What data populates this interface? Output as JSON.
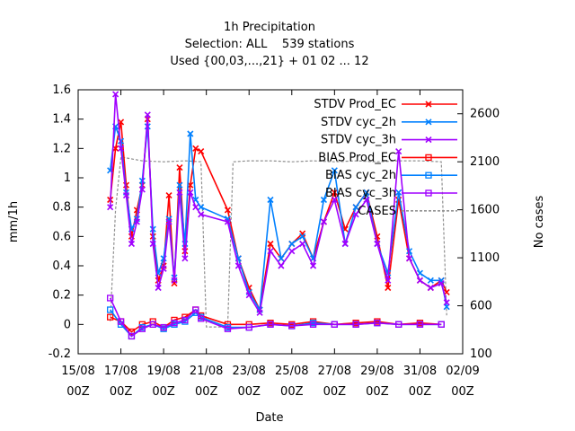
{
  "chart_data": {
    "type": "line",
    "title": "1h Precipitation",
    "subtitle_line1": "Selection: ALL    539 stations",
    "subtitle_line2": "Used {00,03,...,21} + 01 02 ... 12",
    "xlabel": "Date",
    "ylabel": "mm/1h",
    "y2label": "No cases",
    "xlim": [
      "2008-08-15T00",
      "2008-09-02T00"
    ],
    "ylim": [
      -0.2,
      1.6
    ],
    "y2lim": [
      100,
      2850
    ],
    "x_ticks": [
      {
        "line1": "15/08",
        "line2": "00Z"
      },
      {
        "line1": "17/08",
        "line2": "00Z"
      },
      {
        "line1": "19/08",
        "line2": "00Z"
      },
      {
        "line1": "21/08",
        "line2": "00Z"
      },
      {
        "line1": "23/08",
        "line2": "00Z"
      },
      {
        "line1": "25/08",
        "line2": "00Z"
      },
      {
        "line1": "27/08",
        "line2": "00Z"
      },
      {
        "line1": "29/08",
        "line2": "00Z"
      },
      {
        "line1": "31/08",
        "line2": "00Z"
      },
      {
        "line1": "02/09",
        "line2": "00Z"
      }
    ],
    "y_ticks": [
      "-0.2",
      "0",
      "0.2",
      "0.4",
      "0.6",
      "0.8",
      "1",
      "1.2",
      "1.4",
      "1.6"
    ],
    "y2_ticks": [
      "100",
      "600",
      "1100",
      "1600",
      "2100",
      "2600"
    ],
    "legend_position": "top-right",
    "grid": false,
    "series": [
      {
        "name": "STDV Prod_EC",
        "color": "#ff0000",
        "marker": "x",
        "points": [
          [
            "2008-08-16T12",
            0.85
          ],
          [
            "2008-08-16T18",
            1.2
          ],
          [
            "2008-08-17T00",
            1.38
          ],
          [
            "2008-08-17T06",
            0.95
          ],
          [
            "2008-08-17T12",
            0.6
          ],
          [
            "2008-08-17T18",
            0.78
          ],
          [
            "2008-08-18T00",
            0.95
          ],
          [
            "2008-08-18T06",
            1.4
          ],
          [
            "2008-08-18T12",
            0.6
          ],
          [
            "2008-08-18T18",
            0.3
          ],
          [
            "2008-08-19T00",
            0.4
          ],
          [
            "2008-08-19T06",
            0.88
          ],
          [
            "2008-08-19T12",
            0.28
          ],
          [
            "2008-08-19T18",
            1.07
          ],
          [
            "2008-08-20T00",
            0.5
          ],
          [
            "2008-08-20T06",
            0.95
          ],
          [
            "2008-08-20T12",
            1.2
          ],
          [
            "2008-08-20T18",
            1.18
          ],
          [
            "2008-08-22T00",
            0.78
          ],
          [
            "2008-08-22T12",
            0.45
          ],
          [
            "2008-08-23T00",
            0.25
          ],
          [
            "2008-08-23T12",
            0.1
          ],
          [
            "2008-08-24T00",
            0.55
          ],
          [
            "2008-08-24T12",
            0.45
          ],
          [
            "2008-08-25T00",
            0.55
          ],
          [
            "2008-08-25T12",
            0.62
          ],
          [
            "2008-08-26T00",
            0.45
          ],
          [
            "2008-08-26T12",
            0.7
          ],
          [
            "2008-08-27T00",
            0.9
          ],
          [
            "2008-08-27T12",
            0.65
          ],
          [
            "2008-08-28T00",
            0.8
          ],
          [
            "2008-08-28T12",
            0.9
          ],
          [
            "2008-08-29T00",
            0.6
          ],
          [
            "2008-08-29T12",
            0.25
          ],
          [
            "2008-08-30T00",
            0.85
          ],
          [
            "2008-08-30T12",
            0.45
          ],
          [
            "2008-08-31T00",
            0.3
          ],
          [
            "2008-08-31T12",
            0.25
          ],
          [
            "2008-09-01T00",
            0.3
          ],
          [
            "2008-09-01T06",
            0.22
          ]
        ]
      },
      {
        "name": "STDV cyc_2h",
        "color": "#0080ff",
        "marker": "x",
        "points": [
          [
            "2008-08-16T12",
            1.05
          ],
          [
            "2008-08-16T18",
            1.35
          ],
          [
            "2008-08-17T00",
            1.25
          ],
          [
            "2008-08-17T06",
            0.9
          ],
          [
            "2008-08-17T12",
            0.65
          ],
          [
            "2008-08-17T18",
            0.72
          ],
          [
            "2008-08-18T00",
            0.98
          ],
          [
            "2008-08-18T06",
            1.35
          ],
          [
            "2008-08-18T12",
            0.65
          ],
          [
            "2008-08-18T18",
            0.35
          ],
          [
            "2008-08-19T00",
            0.45
          ],
          [
            "2008-08-19T06",
            0.72
          ],
          [
            "2008-08-19T12",
            0.32
          ],
          [
            "2008-08-19T18",
            0.95
          ],
          [
            "2008-08-20T00",
            0.55
          ],
          [
            "2008-08-20T06",
            1.3
          ],
          [
            "2008-08-20T12",
            0.85
          ],
          [
            "2008-08-20T18",
            0.8
          ],
          [
            "2008-08-22T00",
            0.72
          ],
          [
            "2008-08-22T12",
            0.45
          ],
          [
            "2008-08-23T00",
            0.22
          ],
          [
            "2008-08-23T12",
            0.1
          ],
          [
            "2008-08-24T00",
            0.85
          ],
          [
            "2008-08-24T12",
            0.45
          ],
          [
            "2008-08-25T00",
            0.55
          ],
          [
            "2008-08-25T12",
            0.6
          ],
          [
            "2008-08-26T00",
            0.45
          ],
          [
            "2008-08-26T12",
            0.85
          ],
          [
            "2008-08-27T00",
            1.05
          ],
          [
            "2008-08-27T12",
            0.55
          ],
          [
            "2008-08-28T00",
            0.8
          ],
          [
            "2008-08-28T12",
            0.9
          ],
          [
            "2008-08-29T00",
            0.55
          ],
          [
            "2008-08-29T12",
            0.35
          ],
          [
            "2008-08-30T00",
            0.9
          ],
          [
            "2008-08-30T12",
            0.5
          ],
          [
            "2008-08-31T00",
            0.35
          ],
          [
            "2008-08-31T12",
            0.3
          ],
          [
            "2008-09-01T00",
            0.3
          ],
          [
            "2008-09-01T06",
            0.12
          ]
        ]
      },
      {
        "name": "STDV cyc_3h",
        "color": "#a000ff",
        "marker": "x",
        "points": [
          [
            "2008-08-16T12",
            0.8
          ],
          [
            "2008-08-16T18",
            1.57
          ],
          [
            "2008-08-17T00",
            1.2
          ],
          [
            "2008-08-17T06",
            0.88
          ],
          [
            "2008-08-17T12",
            0.55
          ],
          [
            "2008-08-17T18",
            0.7
          ],
          [
            "2008-08-18T00",
            0.92
          ],
          [
            "2008-08-18T06",
            1.43
          ],
          [
            "2008-08-18T12",
            0.55
          ],
          [
            "2008-08-18T18",
            0.25
          ],
          [
            "2008-08-19T00",
            0.38
          ],
          [
            "2008-08-19T06",
            0.7
          ],
          [
            "2008-08-19T12",
            0.3
          ],
          [
            "2008-08-19T18",
            0.9
          ],
          [
            "2008-08-20T00",
            0.45
          ],
          [
            "2008-08-20T06",
            0.9
          ],
          [
            "2008-08-20T12",
            0.8
          ],
          [
            "2008-08-20T18",
            0.75
          ],
          [
            "2008-08-22T00",
            0.7
          ],
          [
            "2008-08-22T12",
            0.4
          ],
          [
            "2008-08-23T00",
            0.2
          ],
          [
            "2008-08-23T12",
            0.08
          ],
          [
            "2008-08-24T00",
            0.5
          ],
          [
            "2008-08-24T12",
            0.4
          ],
          [
            "2008-08-25T00",
            0.5
          ],
          [
            "2008-08-25T12",
            0.55
          ],
          [
            "2008-08-26T00",
            0.4
          ],
          [
            "2008-08-26T12",
            0.7
          ],
          [
            "2008-08-27T00",
            0.85
          ],
          [
            "2008-08-27T12",
            0.55
          ],
          [
            "2008-08-28T00",
            0.75
          ],
          [
            "2008-08-28T12",
            0.85
          ],
          [
            "2008-08-29T00",
            0.55
          ],
          [
            "2008-08-29T12",
            0.3
          ],
          [
            "2008-08-30T00",
            1.18
          ],
          [
            "2008-08-30T12",
            0.45
          ],
          [
            "2008-08-31T00",
            0.3
          ],
          [
            "2008-08-31T12",
            0.25
          ],
          [
            "2008-09-01T00",
            0.28
          ],
          [
            "2008-09-01T06",
            0.15
          ]
        ]
      },
      {
        "name": "BIAS Prod_EC",
        "color": "#ff0000",
        "marker": "square",
        "points": [
          [
            "2008-08-16T12",
            0.05
          ],
          [
            "2008-08-17T00",
            0.02
          ],
          [
            "2008-08-17T12",
            -0.05
          ],
          [
            "2008-08-18T00",
            0.0
          ],
          [
            "2008-08-18T12",
            0.02
          ],
          [
            "2008-08-19T00",
            -0.02
          ],
          [
            "2008-08-19T12",
            0.03
          ],
          [
            "2008-08-20T00",
            0.05
          ],
          [
            "2008-08-20T12",
            0.1
          ],
          [
            "2008-08-20T18",
            0.06
          ],
          [
            "2008-08-22T00",
            0.0
          ],
          [
            "2008-08-23T00",
            0.0
          ],
          [
            "2008-08-24T00",
            0.01
          ],
          [
            "2008-08-25T00",
            0.0
          ],
          [
            "2008-08-26T00",
            0.02
          ],
          [
            "2008-08-27T00",
            0.0
          ],
          [
            "2008-08-28T00",
            0.01
          ],
          [
            "2008-08-29T00",
            0.02
          ],
          [
            "2008-08-30T00",
            0.0
          ],
          [
            "2008-08-31T00",
            0.01
          ],
          [
            "2008-09-01T00",
            0.0
          ]
        ]
      },
      {
        "name": "BIAS cyc_2h",
        "color": "#0080ff",
        "marker": "square",
        "points": [
          [
            "2008-08-16T12",
            0.1
          ],
          [
            "2008-08-17T00",
            0.0
          ],
          [
            "2008-08-17T12",
            -0.08
          ],
          [
            "2008-08-18T00",
            -0.02
          ],
          [
            "2008-08-18T12",
            0.0
          ],
          [
            "2008-08-19T00",
            -0.03
          ],
          [
            "2008-08-19T12",
            0.0
          ],
          [
            "2008-08-20T00",
            0.02
          ],
          [
            "2008-08-20T12",
            0.08
          ],
          [
            "2008-08-20T18",
            0.05
          ],
          [
            "2008-08-22T00",
            -0.02
          ],
          [
            "2008-08-23T00",
            -0.02
          ],
          [
            "2008-08-24T00",
            0.0
          ],
          [
            "2008-08-25T00",
            -0.01
          ],
          [
            "2008-08-26T00",
            0.01
          ],
          [
            "2008-08-27T00",
            0.0
          ],
          [
            "2008-08-28T00",
            0.0
          ],
          [
            "2008-08-29T00",
            0.01
          ],
          [
            "2008-08-30T00",
            0.0
          ],
          [
            "2008-08-31T00",
            0.0
          ],
          [
            "2008-09-01T00",
            0.0
          ]
        ]
      },
      {
        "name": "BIAS cyc_3h",
        "color": "#a000ff",
        "marker": "square",
        "points": [
          [
            "2008-08-16T12",
            0.18
          ],
          [
            "2008-08-17T00",
            0.02
          ],
          [
            "2008-08-17T12",
            -0.08
          ],
          [
            "2008-08-18T00",
            -0.03
          ],
          [
            "2008-08-18T12",
            0.0
          ],
          [
            "2008-08-19T00",
            -0.02
          ],
          [
            "2008-08-19T12",
            0.01
          ],
          [
            "2008-08-20T00",
            0.03
          ],
          [
            "2008-08-20T12",
            0.1
          ],
          [
            "2008-08-20T18",
            0.04
          ],
          [
            "2008-08-22T00",
            -0.03
          ],
          [
            "2008-08-23T00",
            -0.02
          ],
          [
            "2008-08-24T00",
            0.0
          ],
          [
            "2008-08-25T00",
            -0.01
          ],
          [
            "2008-08-26T00",
            0.0
          ],
          [
            "2008-08-27T00",
            0.0
          ],
          [
            "2008-08-28T00",
            0.0
          ],
          [
            "2008-08-29T00",
            0.01
          ],
          [
            "2008-08-30T00",
            0.0
          ],
          [
            "2008-08-31T00",
            0.0
          ],
          [
            "2008-09-01T00",
            0.0
          ]
        ]
      },
      {
        "name": "CASES",
        "color": "#909090",
        "marker": "none",
        "axis": "y2",
        "points": [
          [
            "2008-08-16T12",
            440
          ],
          [
            "2008-08-16T18",
            1600
          ],
          [
            "2008-08-17T00",
            2150
          ],
          [
            "2008-08-18T00",
            2110
          ],
          [
            "2008-08-19T00",
            2100
          ],
          [
            "2008-08-20T00",
            2110
          ],
          [
            "2008-08-20T18",
            2100
          ],
          [
            "2008-08-21T00",
            380
          ],
          [
            "2008-08-22T00",
            380
          ],
          [
            "2008-08-22T06",
            2100
          ],
          [
            "2008-08-23T00",
            2110
          ],
          [
            "2008-08-24T00",
            2110
          ],
          [
            "2008-08-25T00",
            2100
          ],
          [
            "2008-08-26T00",
            2110
          ],
          [
            "2008-08-27T00",
            2100
          ],
          [
            "2008-08-28T00",
            2110
          ],
          [
            "2008-08-29T00",
            2100
          ],
          [
            "2008-08-30T00",
            2110
          ],
          [
            "2008-08-31T00",
            2110
          ],
          [
            "2008-09-01T00",
            2100
          ],
          [
            "2008-09-01T06",
            500
          ]
        ]
      }
    ]
  }
}
